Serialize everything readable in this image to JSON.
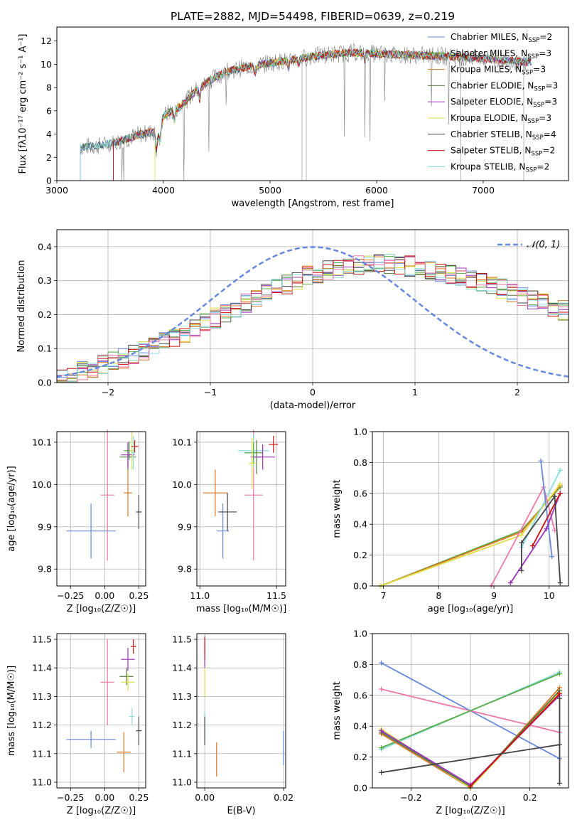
{
  "page": {
    "title": "PLATE=2882, MJD=54498, FIBERID=0639, z=0.219"
  },
  "colors": {
    "miles_chabrier": "#6688dd",
    "miles_salpeter": "#55aa44",
    "miles_kroupa": "#dd7722",
    "elodie_chabrier": "#557744",
    "elodie_salpeter": "#9933bb",
    "elodie_kroupa": "#dddd44",
    "stelib_chabrier": "#444444",
    "stelib_salpeter": "#cc1111",
    "stelib_kroupa": "#88dddd",
    "extra_pink": "#ee77aa",
    "normal": "#6688dd",
    "data": "#777777"
  },
  "chart_data": [
    {
      "type": "line",
      "xlabel": "wavelength [Angstrom, rest frame]",
      "ylabel": "Flux [fλ10⁻¹⁷ erg cm⁻² s⁻¹ A⁻¹]",
      "xlim": [
        3000,
        7800
      ],
      "ylim": [
        0,
        13.2
      ],
      "xticks": [
        "3000",
        "4000",
        "5000",
        "6000",
        "7000"
      ],
      "yticks": [
        "0",
        "2",
        "4",
        "6",
        "8",
        "10",
        "12"
      ],
      "legend": "top-right",
      "series": [
        {
          "name": "Chabrier MILES, N",
          "sub": "SSP",
          "suffix": "=2",
          "color": "#6688dd"
        },
        {
          "name": "Salpeter MILES, N",
          "sub": "SSP",
          "suffix": "=3",
          "color": "#55aa44"
        },
        {
          "name": "Kroupa MILES, N",
          "sub": "SSP",
          "suffix": "=3",
          "color": "#dd7722"
        },
        {
          "name": "Chabrier ELODIE, N",
          "sub": "SSP",
          "suffix": "=3",
          "color": "#557744"
        },
        {
          "name": "Salpeter ELODIE, N",
          "sub": "SSP",
          "suffix": "=3",
          "color": "#9933bb"
        },
        {
          "name": "Kroupa ELODIE, N",
          "sub": "SSP",
          "suffix": "=3",
          "color": "#dddd44"
        },
        {
          "name": "Chabrier STELIB, N",
          "sub": "SSP",
          "suffix": "=4",
          "color": "#444444"
        },
        {
          "name": "Salpeter STELIB, N",
          "sub": "SSP",
          "suffix": "=2",
          "color": "#cc1111"
        },
        {
          "name": "Kroupa STELIB, N",
          "sub": "SSP",
          "suffix": "=2",
          "color": "#88dddd"
        }
      ],
      "continuum": [
        [
          3220,
          2.9
        ],
        [
          3400,
          3.0
        ],
        [
          3600,
          3.4
        ],
        [
          3750,
          3.9
        ],
        [
          3900,
          4.2
        ],
        [
          3950,
          3.8
        ],
        [
          4000,
          5.6
        ],
        [
          4150,
          6.3
        ],
        [
          4300,
          7.7
        ],
        [
          4450,
          8.7
        ],
        [
          4600,
          9.4
        ],
        [
          4800,
          9.8
        ],
        [
          5000,
          10.1
        ],
        [
          5200,
          10.4
        ],
        [
          5500,
          10.8
        ],
        [
          5800,
          11.0
        ],
        [
          6000,
          10.9
        ],
        [
          6300,
          10.8
        ],
        [
          6600,
          10.7
        ],
        [
          7000,
          10.5
        ],
        [
          7400,
          10.2
        ]
      ]
    },
    {
      "type": "step",
      "xlabel": "(data-model)/error",
      "ylabel": "Normed distribution",
      "xlim": [
        -2.5,
        2.5
      ],
      "ylim": [
        0,
        0.45
      ],
      "xticks": [
        "−2",
        "−1",
        "0",
        "1",
        "2"
      ],
      "yticks": [
        "0.0",
        "0.1",
        "0.2",
        "0.3",
        "0.4"
      ],
      "legend": "top-right",
      "normal_label": "𝒩(0, 1)",
      "bin_width": 0.1,
      "x_start": -2.5,
      "base": [
        0.025,
        0.03,
        0.036,
        0.044,
        0.052,
        0.062,
        0.072,
        0.083,
        0.095,
        0.108,
        0.12,
        0.135,
        0.148,
        0.162,
        0.176,
        0.19,
        0.205,
        0.22,
        0.235,
        0.25,
        0.264,
        0.277,
        0.29,
        0.302,
        0.313,
        0.323,
        0.332,
        0.339,
        0.345,
        0.349,
        0.352,
        0.352,
        0.35,
        0.347,
        0.343,
        0.338,
        0.332,
        0.326,
        0.318,
        0.31,
        0.302,
        0.294,
        0.285,
        0.276,
        0.266,
        0.256,
        0.245,
        0.234,
        0.223,
        0.212,
        0.2,
        0.188,
        0.176,
        0.164,
        0.152,
        0.14,
        0.128,
        0.117,
        0.106,
        0.096,
        0.086,
        0.078,
        0.07,
        0.063,
        0.056,
        0.05,
        0.045
      ]
    },
    {
      "type": "scatter",
      "xlabel": "Z [log₁₀(Z/Z☉)]",
      "ylabel": "age  [log₁₀(age/yr)]",
      "xlim": [
        -0.35,
        0.3
      ],
      "ylim": [
        9.76,
        10.125
      ],
      "xticks": [
        "−0.25",
        "0.00",
        "0.25"
      ],
      "yticks": [
        "9.8",
        "9.9",
        "10.0",
        "10.1"
      ],
      "points": [
        {
          "x": -0.1,
          "y": 9.89,
          "xerr": 0.18,
          "yerr": 0.065,
          "color": "#6688dd"
        },
        {
          "x": 0.02,
          "y": 9.975,
          "xerr": 0.05,
          "yerr": 0.155,
          "color": "#ee77aa"
        },
        {
          "x": 0.17,
          "y": 9.98,
          "xerr": 0.03,
          "yerr": 0.055,
          "color": "#dd7722"
        },
        {
          "x": 0.18,
          "y": 10.08,
          "xerr": 0.04,
          "yerr": 0.022,
          "color": "#55aa44"
        },
        {
          "x": 0.17,
          "y": 10.065,
          "xerr": 0.06,
          "yerr": 0.03,
          "color": "#557744"
        },
        {
          "x": 0.17,
          "y": 10.07,
          "xerr": 0.05,
          "yerr": 0.03,
          "color": "#9933bb"
        },
        {
          "x": 0.2,
          "y": 10.08,
          "xerr": 0.02,
          "yerr": 0.045,
          "color": "#dddd44"
        },
        {
          "x": 0.22,
          "y": 10.09,
          "xerr": 0.025,
          "yerr": 0.015,
          "color": "#cc1111"
        },
        {
          "x": 0.25,
          "y": 9.935,
          "xerr": 0.02,
          "yerr": 0.04,
          "color": "#444444"
        },
        {
          "x": 0.21,
          "y": 10.075,
          "xerr": 0.015,
          "yerr": 0.04,
          "color": "#88dddd"
        }
      ]
    },
    {
      "type": "scatter",
      "xlabel": "mass [log₁₀(M/M☉)]",
      "ylabel": "",
      "xlim": [
        10.98,
        11.56
      ],
      "ylim": [
        9.76,
        10.125
      ],
      "xticks": [
        "11.0",
        "11.5"
      ],
      "yticks": [
        "9.8",
        "9.9",
        "10.0",
        "10.1"
      ],
      "points": [
        {
          "x": 11.15,
          "y": 9.89,
          "xerr": 0.04,
          "yerr": 0.065,
          "color": "#6688dd"
        },
        {
          "x": 11.1,
          "y": 9.98,
          "xerr": 0.08,
          "yerr": 0.055,
          "color": "#dd7722"
        },
        {
          "x": 11.35,
          "y": 9.975,
          "xerr": 0.06,
          "yerr": 0.155,
          "color": "#ee77aa"
        },
        {
          "x": 11.18,
          "y": 9.935,
          "xerr": 0.06,
          "yerr": 0.045,
          "color": "#444444"
        },
        {
          "x": 11.35,
          "y": 10.08,
          "xerr": 0.1,
          "yerr": 0.04,
          "color": "#88dddd"
        },
        {
          "x": 11.35,
          "y": 10.075,
          "xerr": 0.06,
          "yerr": 0.025,
          "color": "#55aa44"
        },
        {
          "x": 11.37,
          "y": 10.065,
          "xerr": 0.03,
          "yerr": 0.04,
          "color": "#557744"
        },
        {
          "x": 11.41,
          "y": 10.065,
          "xerr": 0.08,
          "yerr": 0.03,
          "color": "#9933bb"
        },
        {
          "x": 11.34,
          "y": 10.05,
          "xerr": 0.02,
          "yerr": 0.06,
          "color": "#dddd44"
        },
        {
          "x": 11.48,
          "y": 10.095,
          "xerr": 0.03,
          "yerr": 0.02,
          "color": "#cc1111"
        }
      ]
    },
    {
      "type": "line",
      "xlabel": "age  [log₁₀(age/yr)]",
      "ylabel": "mass weight",
      "xlim": [
        6.8,
        10.35
      ],
      "ylim": [
        0,
        1.0
      ],
      "xticks": [
        "7",
        "8",
        "9",
        "10"
      ],
      "yticks": [
        "0.0",
        "0.2",
        "0.4",
        "0.6",
        "0.8",
        "1.0"
      ],
      "grid": true,
      "series": [
        {
          "color": "#55aa44",
          "points": [
            [
              6.95,
              0.0
            ],
            [
              9.5,
              0.36
            ],
            [
              10.2,
              0.64
            ]
          ]
        },
        {
          "color": "#dd7722",
          "points": [
            [
              6.95,
              0.0
            ],
            [
              9.5,
              0.35
            ],
            [
              10.2,
              0.65
            ]
          ]
        },
        {
          "color": "#dddd44",
          "points": [
            [
              6.95,
              0.0
            ],
            [
              9.5,
              0.33
            ],
            [
              10.2,
              0.66
            ]
          ]
        },
        {
          "color": "#88dddd",
          "points": [
            [
              9.5,
              0.25
            ],
            [
              10.2,
              0.75
            ]
          ]
        },
        {
          "color": "#ee77aa",
          "points": [
            [
              8.95,
              0.0
            ],
            [
              9.9,
              0.64
            ],
            [
              10.1,
              0.36
            ]
          ]
        },
        {
          "color": "#6688dd",
          "points": [
            [
              9.85,
              0.81
            ],
            [
              10.05,
              0.19
            ]
          ]
        },
        {
          "color": "#9933bb",
          "points": [
            [
              9.3,
              0.02
            ],
            [
              9.95,
              0.37
            ],
            [
              10.2,
              0.6
            ]
          ]
        },
        {
          "color": "#cc1111",
          "points": [
            [
              9.7,
              0.26
            ],
            [
              10.2,
              0.6
            ]
          ]
        },
        {
          "color": "#444444",
          "points": [
            [
              9.5,
              0.1
            ],
            [
              9.5,
              0.28
            ],
            [
              10.1,
              0.58
            ],
            [
              10.2,
              0.02
            ]
          ]
        }
      ]
    },
    {
      "type": "scatter",
      "xlabel": "Z [log₁₀(Z/Z☉)]",
      "ylabel": "mass [log₁₀(M/M☉)]",
      "xlim": [
        -0.35,
        0.3
      ],
      "ylim": [
        10.98,
        11.52
      ],
      "xticks": [
        "−0.25",
        "0.00",
        "0.25"
      ],
      "yticks": [
        "11.0",
        "11.1",
        "11.2",
        "11.3",
        "11.4",
        "11.5"
      ],
      "points": [
        {
          "x": -0.1,
          "y": 11.15,
          "xerr": 0.18,
          "yerr": 0.03,
          "color": "#6688dd"
        },
        {
          "x": 0.02,
          "y": 11.35,
          "xerr": 0.05,
          "yerr": 0.15,
          "color": "#ee77aa"
        },
        {
          "x": 0.14,
          "y": 11.105,
          "xerr": 0.05,
          "yerr": 0.07,
          "color": "#dd7722"
        },
        {
          "x": 0.16,
          "y": 11.37,
          "xerr": 0.05,
          "yerr": 0.03,
          "color": "#557744"
        },
        {
          "x": 0.17,
          "y": 11.43,
          "xerr": 0.05,
          "yerr": 0.04,
          "color": "#9933bb"
        },
        {
          "x": 0.17,
          "y": 11.35,
          "xerr": 0.05,
          "yerr": 0.03,
          "color": "#dddd44"
        },
        {
          "x": 0.21,
          "y": 11.475,
          "xerr": 0.02,
          "yerr": 0.025,
          "color": "#cc1111"
        },
        {
          "x": 0.25,
          "y": 11.18,
          "xerr": 0.02,
          "yerr": 0.05,
          "color": "#444444"
        },
        {
          "x": 0.2,
          "y": 11.23,
          "xerr": 0.02,
          "yerr": 0.03,
          "color": "#88dddd"
        }
      ]
    },
    {
      "type": "scatter",
      "xlabel": "E(B-V)",
      "ylabel": "",
      "xlim": [
        -0.002,
        0.0205
      ],
      "ylim": [
        10.98,
        11.52
      ],
      "xticks": [
        "0.00",
        "0.02"
      ],
      "yticks": [
        "11.0",
        "11.1",
        "11.2",
        "11.3",
        "11.4",
        "11.5"
      ],
      "points": [
        {
          "x": 0.0,
          "y": 11.45,
          "xerr": 0.0,
          "yerr": 0.05,
          "color": "#9933bb"
        },
        {
          "x": 0.0,
          "y": 11.35,
          "xerr": 0.0,
          "yerr": 0.05,
          "color": "#dddd44"
        },
        {
          "x": 0.0,
          "y": 11.2,
          "xerr": 0.0,
          "yerr": 0.05,
          "color": "#88dddd"
        },
        {
          "x": 0.0,
          "y": 11.18,
          "xerr": 0.0,
          "yerr": 0.05,
          "color": "#444444"
        },
        {
          "x": 0.0,
          "y": 11.47,
          "xerr": 0.0,
          "yerr": 0.04,
          "color": "#cc1111"
        },
        {
          "x": 0.003,
          "y": 11.08,
          "xerr": 0.0,
          "yerr": 0.06,
          "color": "#dd7722"
        },
        {
          "x": 0.02,
          "y": 11.12,
          "xerr": 0.0,
          "yerr": 0.06,
          "color": "#6688dd"
        }
      ]
    },
    {
      "type": "line",
      "xlabel": "Z [log₁₀(Z/Z☉)]",
      "ylabel": "mass weight",
      "xlim": [
        -0.33,
        0.33
      ],
      "ylim": [
        0,
        1.0
      ],
      "xticks": [
        "−0.2",
        "0.0",
        "0.2"
      ],
      "yticks": [
        "0.0",
        "0.2",
        "0.4",
        "0.6",
        "0.8",
        "1.0"
      ],
      "grid": true,
      "series": [
        {
          "color": "#6688dd",
          "points": [
            [
              -0.3,
              0.81
            ],
            [
              0.3,
              0.19
            ]
          ]
        },
        {
          "color": "#ee77aa",
          "points": [
            [
              -0.3,
              0.64
            ],
            [
              0.3,
              0.36
            ]
          ]
        },
        {
          "color": "#88dddd",
          "points": [
            [
              -0.3,
              0.25
            ],
            [
              0.3,
              0.75
            ]
          ]
        },
        {
          "color": "#55aa44",
          "points": [
            [
              -0.3,
              0.26
            ],
            [
              0.3,
              0.74
            ]
          ]
        },
        {
          "color": "#dd7722",
          "points": [
            [
              -0.3,
              0.35
            ],
            [
              0.0,
              0.0
            ],
            [
              0.3,
              0.65
            ]
          ]
        },
        {
          "color": "#dddd44",
          "points": [
            [
              -0.3,
              0.38
            ],
            [
              0.0,
              0.0
            ],
            [
              0.3,
              0.62
            ]
          ]
        },
        {
          "color": "#557744",
          "points": [
            [
              -0.3,
              0.36
            ],
            [
              0.0,
              0.01
            ],
            [
              0.3,
              0.63
            ]
          ]
        },
        {
          "color": "#9933bb",
          "points": [
            [
              -0.3,
              0.37
            ],
            [
              0.0,
              0.02
            ],
            [
              0.3,
              0.6
            ]
          ]
        },
        {
          "color": "#cc1111",
          "points": [
            [
              0.0,
              0.01
            ],
            [
              0.3,
              0.61
            ]
          ]
        },
        {
          "color": "#444444",
          "points": [
            [
              -0.3,
              0.1
            ],
            [
              0.3,
              0.28
            ],
            [
              0.3,
              0.58
            ],
            [
              0.3,
              0.03
            ]
          ]
        }
      ]
    }
  ]
}
